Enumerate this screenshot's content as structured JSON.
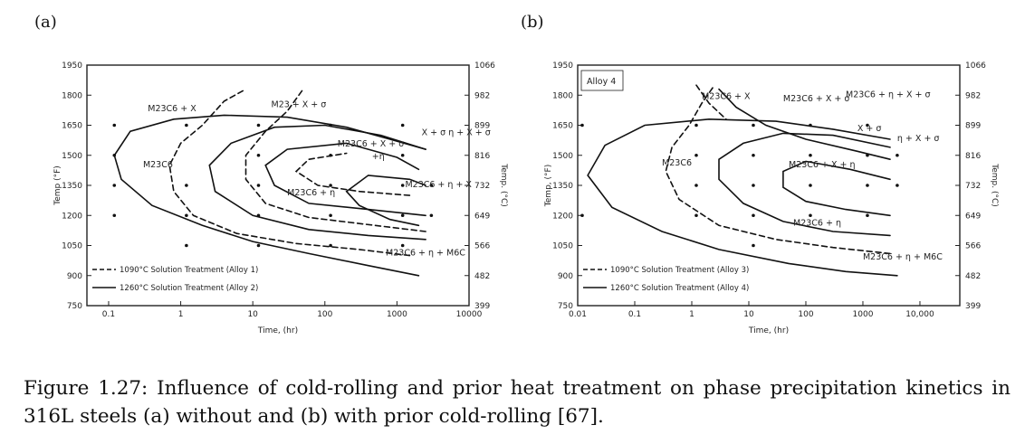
{
  "panel_a": {
    "label": "(a)",
    "chart_data": {
      "type": "line",
      "x_scale": "log",
      "xlim": [
        0.05,
        10000
      ],
      "ylim_left": [
        750,
        1950
      ],
      "left_ticks": [
        "1950",
        "1800",
        "1650",
        "1500",
        "1350",
        "1200",
        "1050",
        "900",
        "750"
      ],
      "right_ticks": [
        "1066",
        "982",
        "899",
        "816",
        "732",
        "649",
        "566",
        "482",
        "399"
      ],
      "x_ticks": [
        "0.1",
        "1",
        "10",
        "100",
        "1000",
        "10000"
      ],
      "xlabel": "Time, (hr)",
      "ylabel_left": "Temp (°F)",
      "ylabel_right": "Temp. (°C)",
      "regions": [
        {
          "text": "M23C6 + X",
          "t": 0.35,
          "T": 1720
        },
        {
          "text": "M23C6",
          "t": 0.3,
          "T": 1440
        },
        {
          "text": "M23 + X + σ",
          "t": 18,
          "T": 1740
        },
        {
          "text": "X + σ  η + X + σ",
          "t": 2200,
          "T": 1600
        },
        {
          "text": "M23C6 + X + σ",
          "t": 150,
          "T": 1545
        },
        {
          "text": "+η",
          "t": 450,
          "T": 1480
        },
        {
          "text": "M23C6 + η + X",
          "t": 1300,
          "T": 1340
        },
        {
          "text": "M23C6 + η",
          "t": 30,
          "T": 1300
        },
        {
          "text": "M23C6 + η + M6C",
          "t": 700,
          "T": 1000
        }
      ],
      "legend": [
        {
          "style": "dashed",
          "text": "1090°C Solution Treatment (Alloy 1)"
        },
        {
          "style": "solid",
          "text": "1260°C Solution Treatment (Alloy 2)"
        }
      ]
    }
  },
  "panel_b": {
    "label": "(b)",
    "chart_data": {
      "type": "line",
      "x_scale": "log",
      "xlim": [
        0.01,
        50000
      ],
      "ylim_left": [
        750,
        1950
      ],
      "left_ticks": [
        "1950",
        "1800",
        "1650",
        "1500",
        "1350",
        "1200",
        "1050",
        "900",
        "750"
      ],
      "right_ticks": [
        "1066",
        "982",
        "899",
        "816",
        "732",
        "649",
        "566",
        "482",
        "399"
      ],
      "x_ticks": [
        "0.01",
        "0.1",
        "1",
        "10",
        "100",
        "1000",
        "10,000"
      ],
      "xlabel": "Time, (hr)",
      "ylabel_left": "Temp, (°F)",
      "ylabel_right": "Temp. (°C)",
      "inset": "Alloy 4",
      "regions": [
        {
          "text": "M23C6 + X",
          "t": 1.5,
          "T": 1780
        },
        {
          "text": "M23C6 + X + σ",
          "t": 40,
          "T": 1770
        },
        {
          "text": "M23C6 + η + X + σ",
          "t": 500,
          "T": 1790
        },
        {
          "text": "X + σ",
          "t": 800,
          "T": 1620
        },
        {
          "text": "η + X + σ",
          "t": 4000,
          "T": 1570
        },
        {
          "text": "M23C6",
          "t": 0.3,
          "T": 1450
        },
        {
          "text": "M23C6 + X + η",
          "t": 50,
          "T": 1440
        },
        {
          "text": "M23C6 + η",
          "t": 60,
          "T": 1150
        },
        {
          "text": "M23C6 + η + M6C",
          "t": 1000,
          "T": 980
        }
      ],
      "legend": [
        {
          "style": "dashed",
          "text": "1090°C Solution Treatment (Alloy 3)"
        },
        {
          "style": "solid",
          "text": "1260°C Solution Treatment (Alloy 4)"
        }
      ]
    }
  },
  "caption": "Figure 1.27: Influence of cold-rolling and prior heat treatment on phase precipitation kinetics in 316L steels (a) without and (b) with prior cold-rolling [67]."
}
